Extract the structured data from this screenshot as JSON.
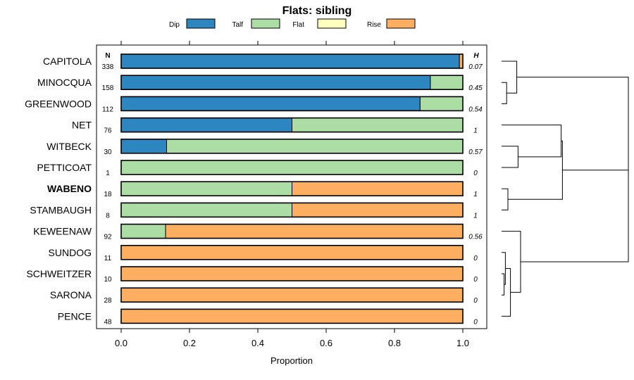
{
  "chart_data": {
    "type": "bar",
    "stacked": true,
    "orientation": "horizontal",
    "title": "Flats: sibling",
    "xlabel": "Proportion",
    "xlim": [
      0,
      1
    ],
    "xticks": [
      "0.0",
      "0.2",
      "0.4",
      "0.6",
      "0.8",
      "1.0"
    ],
    "n_header": "N",
    "h_header": "H",
    "legend": [
      {
        "name": "Dip",
        "color": "#2E86C1"
      },
      {
        "name": "Talf",
        "color": "#ABDDA4"
      },
      {
        "name": "Flat",
        "color": "#FFFFBF"
      },
      {
        "name": "Rise",
        "color": "#FDAE61"
      }
    ],
    "rows": [
      {
        "label": "CAPITOLA",
        "n": "338",
        "h": "0.07",
        "bold": false,
        "values": [
          0.99,
          0.0,
          0.0,
          0.01
        ]
      },
      {
        "label": "MINOCQUA",
        "n": "158",
        "h": "0.45",
        "bold": false,
        "values": [
          0.905,
          0.095,
          0.0,
          0.0
        ]
      },
      {
        "label": "GREENWOOD",
        "n": "112",
        "h": "0.54",
        "bold": false,
        "values": [
          0.875,
          0.125,
          0.0,
          0.0
        ]
      },
      {
        "label": "NET",
        "n": "76",
        "h": "1",
        "bold": false,
        "values": [
          0.5,
          0.5,
          0.0,
          0.0
        ]
      },
      {
        "label": "WITBECK",
        "n": "30",
        "h": "0.57",
        "bold": false,
        "values": [
          0.133,
          0.867,
          0.0,
          0.0
        ]
      },
      {
        "label": "PETTICOAT",
        "n": "1",
        "h": "0",
        "bold": false,
        "values": [
          0.0,
          1.0,
          0.0,
          0.0
        ]
      },
      {
        "label": "WABENO",
        "n": "18",
        "h": "1",
        "bold": true,
        "values": [
          0.0,
          0.5,
          0.0,
          0.5
        ]
      },
      {
        "label": "STAMBAUGH",
        "n": "8",
        "h": "1",
        "bold": false,
        "values": [
          0.0,
          0.5,
          0.0,
          0.5
        ]
      },
      {
        "label": "KEWEENAW",
        "n": "92",
        "h": "0.56",
        "bold": false,
        "values": [
          0.0,
          0.13,
          0.0,
          0.87
        ]
      },
      {
        "label": "SUNDOG",
        "n": "11",
        "h": "0",
        "bold": false,
        "values": [
          0.0,
          0.0,
          0.0,
          1.0
        ]
      },
      {
        "label": "SCHWEITZER",
        "n": "10",
        "h": "0",
        "bold": false,
        "values": [
          0.0,
          0.0,
          0.0,
          1.0
        ]
      },
      {
        "label": "SARONA",
        "n": "28",
        "h": "0",
        "bold": false,
        "values": [
          0.0,
          0.0,
          0.0,
          1.0
        ]
      },
      {
        "label": "PENCE",
        "n": "48",
        "h": "0",
        "bold": false,
        "values": [
          0.0,
          0.0,
          0.0,
          1.0
        ]
      }
    ],
    "dendrogram": {
      "leaves": [
        "CAPITOLA",
        "MINOCQUA",
        "GREENWOOD",
        "NET",
        "WITBECK",
        "PETTICOAT",
        "WABENO",
        "STAMBAUGH",
        "KEWEENAW",
        "SUNDOG",
        "SCHWEITZER",
        "SARONA",
        "PENCE"
      ],
      "merges": [
        {
          "a": 1,
          "b": 2,
          "height": 0.04
        },
        {
          "a": 0,
          "b": "m0",
          "height": 0.12
        },
        {
          "a": 4,
          "b": 5,
          "height": 0.13
        },
        {
          "a": 3,
          "b": "m2",
          "height": 0.47
        },
        {
          "a": 6,
          "b": 7,
          "height": 0.05
        },
        {
          "a": "m3",
          "b": "m4",
          "height": 0.48
        },
        {
          "a": 10,
          "b": 11,
          "height": 0.02
        },
        {
          "a": 9,
          "b": "m6",
          "height": 0.03
        },
        {
          "a": "m7",
          "b": 12,
          "height": 0.07
        },
        {
          "a": 8,
          "b": "m8",
          "height": 0.15
        },
        {
          "a": "m1",
          "b": "m5",
          "height": 1.0
        },
        {
          "a": "m10",
          "b": "m9",
          "height": 1.0
        }
      ]
    }
  }
}
